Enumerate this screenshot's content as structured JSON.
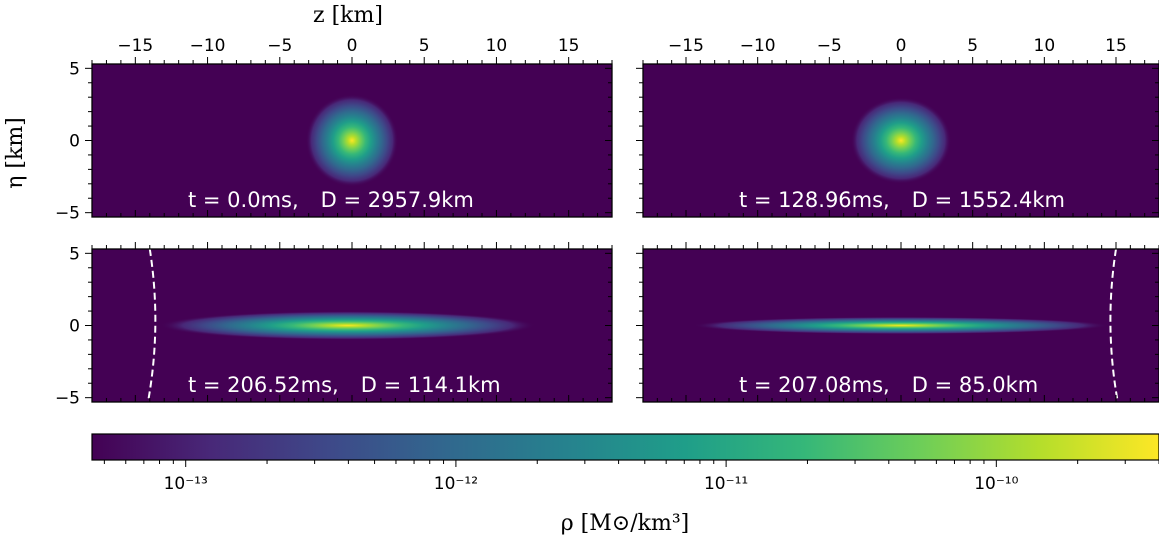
{
  "chart_data": {
    "type": "heatmap",
    "x_axis_label": "z [km]",
    "y_axis_label": "η [km]",
    "xlim": [
      -18,
      18
    ],
    "ylim": [
      -5.3,
      5.3
    ],
    "x_ticks": [
      -15,
      -10,
      -5,
      0,
      5,
      10,
      15
    ],
    "y_ticks": [
      5,
      0,
      -5
    ],
    "x_tick_labels": [
      "−15",
      "−10",
      "−5",
      "0",
      "5",
      "10",
      "15"
    ],
    "y_tick_labels": [
      "5",
      "0",
      "−5"
    ],
    "panels": [
      {
        "annotation_t": "t = 0.0ms,",
        "annotation_D": "D = 2957.9km",
        "t_ms": 0.0,
        "D_km": 2957.9,
        "blob_half_width_km": 3.2,
        "blob_half_height_km": 3.2,
        "blob_center_z_km": 0,
        "boundary_z_km": null
      },
      {
        "annotation_t": "t = 128.96ms,",
        "annotation_D": "D = 1552.4km",
        "t_ms": 128.96,
        "D_km": 1552.4,
        "blob_half_width_km": 3.5,
        "blob_half_height_km": 3.0,
        "blob_center_z_km": 0,
        "boundary_z_km": null
      },
      {
        "annotation_t": "t = 206.52ms,",
        "annotation_D": "D = 114.1km",
        "t_ms": 206.52,
        "D_km": 114.1,
        "blob_half_width_km": 13.0,
        "blob_half_height_km": 1.0,
        "blob_center_z_km": -0.3,
        "boundary_z_km": -14.0
      },
      {
        "annotation_t": "t = 207.08ms,",
        "annotation_D": "D = 85.0km",
        "t_ms": 207.08,
        "D_km": 85.0,
        "blob_half_width_km": 14.5,
        "blob_half_height_km": 0.6,
        "blob_center_z_km": 0,
        "boundary_z_km": 15.0
      }
    ],
    "colorbar": {
      "label": "ρ [M⊙/km³]",
      "scale": "log",
      "range": [
        4.5e-14,
        4e-10
      ],
      "ticks": [
        1e-13,
        1e-12,
        1e-11,
        1e-10
      ],
      "tick_labels": [
        "10⁻¹³",
        "10⁻¹²",
        "10⁻¹¹",
        "10⁻¹⁰"
      ],
      "colormap": "viridis"
    },
    "colors": {
      "background": "#440154",
      "colormap_stops": [
        "#440154",
        "#482878",
        "#3e4989",
        "#31688e",
        "#26828e",
        "#1f9e89",
        "#35b779",
        "#6ece58",
        "#b5de2b",
        "#fde725"
      ],
      "annotation": "#ffffff",
      "boundary_line": "#ffffff"
    }
  }
}
